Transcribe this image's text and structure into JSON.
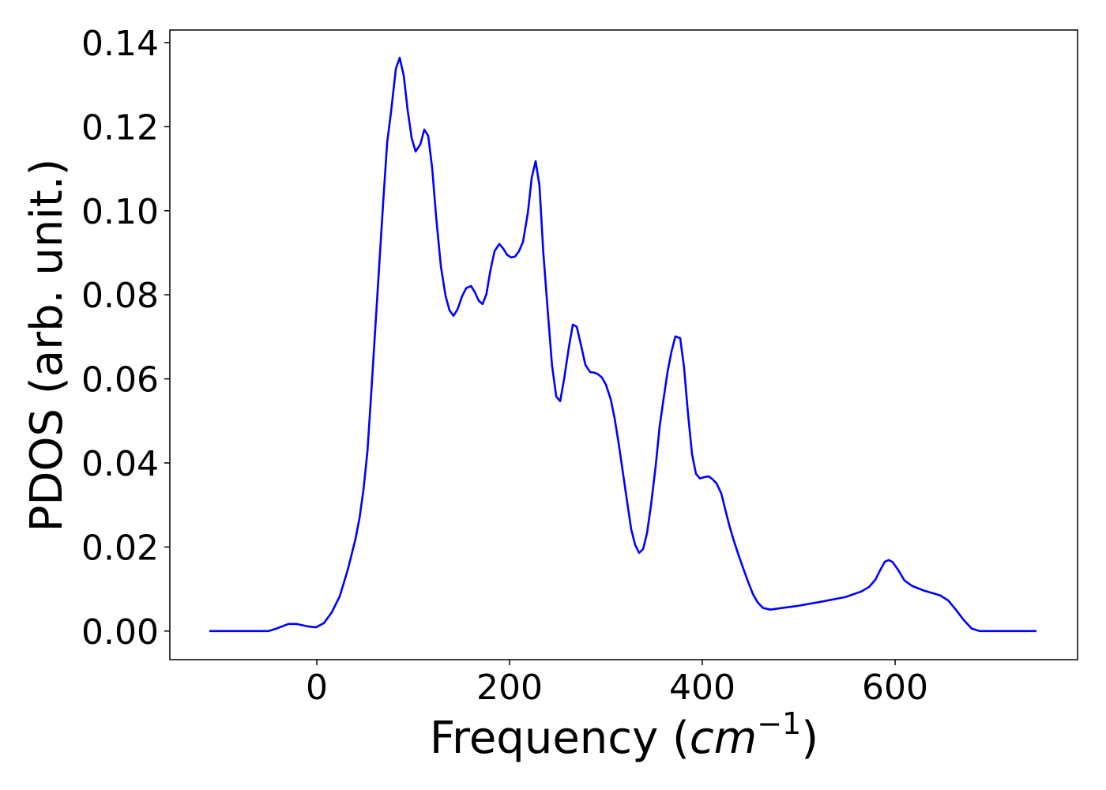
{
  "chart_data": {
    "type": "line",
    "xlabel_parts": [
      "Frequency (",
      "cm",
      "−1",
      ")"
    ],
    "ylabel": "PDOS (arb. unit.)",
    "xlim": [
      -152.5,
      789.3
    ],
    "ylim": [
      -0.0068,
      0.143
    ],
    "xticks": [
      0,
      200,
      400,
      600
    ],
    "yticks": [
      {
        "value": 0,
        "label": "0.00"
      },
      {
        "value": 0.02,
        "label": "0.02"
      },
      {
        "value": 0.04,
        "label": "0.04"
      },
      {
        "value": 0.06,
        "label": "0.06"
      },
      {
        "value": 0.08,
        "label": "0.08"
      },
      {
        "value": 0.1,
        "label": "0.10"
      },
      {
        "value": 0.12,
        "label": "0.12"
      },
      {
        "value": 0.14,
        "label": "0.14"
      }
    ],
    "grid": false,
    "series": [
      {
        "color": "#0000ff",
        "x": [
          -111.5,
          -50,
          -41.8,
          -29.5,
          -21.3,
          -9,
          -0.8,
          7.4,
          15.6,
          23.8,
          32,
          40.2,
          44.3,
          48.4,
          52.5,
          56.6,
          60.7,
          64.8,
          68.9,
          73,
          77,
          82,
          86,
          90.2,
          94.3,
          98.4,
          102.5,
          107.4,
          111.5,
          115.6,
          119.7,
          123.8,
          128.7,
          133.6,
          137.7,
          141.8,
          145.9,
          150.8,
          155,
          160,
          164,
          168,
          172,
          176,
          180,
          184.4,
          189.3,
          193.4,
          197.5,
          201.6,
          205.7,
          209.8,
          213.9,
          218.9,
          223,
          227,
          231,
          235,
          240,
          244,
          248.4,
          252.5,
          256.6,
          261.5,
          265.6,
          269.7,
          274.6,
          278.7,
          283.6,
          287.7,
          291.8,
          295.9,
          300,
          305,
          309,
          313,
          317.2,
          321.3,
          326.2,
          330.3,
          334.4,
          338.5,
          342.6,
          346.7,
          351.6,
          355.7,
          359.8,
          364,
          368,
          372,
          377,
          381,
          385.2,
          389.3,
          393.4,
          397.5,
          401.6,
          406.6,
          410.7,
          414.8,
          419.7,
          423.8,
          427.9,
          432.8,
          437.7,
          442.6,
          447.5,
          452.5,
          457.4,
          463,
          470.5,
          482.8,
          499,
          523.8,
          548.4,
          564.8,
          573,
          579.5,
          585.2,
          589.3,
          593.4,
          597.5,
          603.3,
          609.8,
          618,
          630.3,
          646.7,
          655,
          663,
          671.3,
          679.5,
          687.7,
          746.7
        ],
        "values": [
          0,
          0,
          0.0006,
          0.0017,
          0.0017,
          0.0011,
          0.0009,
          0.0019,
          0.0045,
          0.0083,
          0.0145,
          0.022,
          0.0269,
          0.0336,
          0.0427,
          0.0571,
          0.0722,
          0.0872,
          0.1022,
          0.1163,
          0.1235,
          0.1338,
          0.1364,
          0.1321,
          0.1238,
          0.1173,
          0.1141,
          0.1158,
          0.1193,
          0.1178,
          0.1101,
          0.0985,
          0.0868,
          0.0797,
          0.0763,
          0.075,
          0.0765,
          0.0797,
          0.0816,
          0.0821,
          0.0806,
          0.0786,
          0.0778,
          0.0802,
          0.0857,
          0.0904,
          0.0921,
          0.091,
          0.0895,
          0.0889,
          0.0891,
          0.0904,
          0.0926,
          0.0994,
          0.1079,
          0.1118,
          0.106,
          0.09,
          0.075,
          0.0633,
          0.0558,
          0.0547,
          0.06,
          0.0675,
          0.0729,
          0.0724,
          0.0675,
          0.0633,
          0.0616,
          0.0615,
          0.0611,
          0.0603,
          0.0586,
          0.0551,
          0.0506,
          0.0449,
          0.0383,
          0.0318,
          0.0242,
          0.0205,
          0.0186,
          0.0195,
          0.0233,
          0.0299,
          0.0393,
          0.0487,
          0.0553,
          0.0618,
          0.0665,
          0.0701,
          0.0697,
          0.0628,
          0.0515,
          0.0421,
          0.0374,
          0.0363,
          0.0366,
          0.0368,
          0.0361,
          0.0351,
          0.0327,
          0.0289,
          0.0252,
          0.0214,
          0.018,
          0.0148,
          0.0117,
          0.0088,
          0.0068,
          0.0055,
          0.0051,
          0.0055,
          0.006,
          0.007,
          0.0081,
          0.0094,
          0.0105,
          0.0122,
          0.0148,
          0.0165,
          0.0169,
          0.0164,
          0.0145,
          0.012,
          0.0107,
          0.0096,
          0.0085,
          0.0073,
          0.0051,
          0.0026,
          0.0006,
          0,
          0
        ]
      }
    ]
  }
}
